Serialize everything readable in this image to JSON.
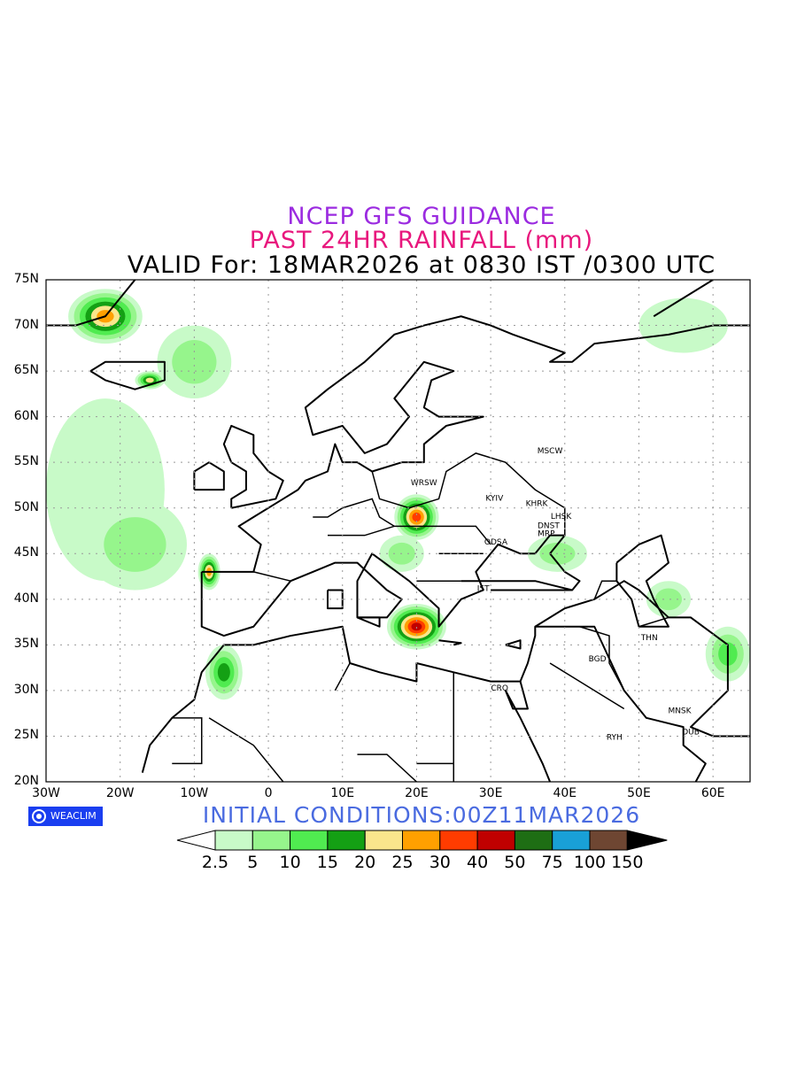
{
  "titles": {
    "line1": "NCEP GFS GUIDANCE",
    "line2": "PAST 24HR RAINFALL (mm)",
    "line3": "VALID For: 18MAR2026 at 0830 IST /0300 UTC"
  },
  "axes": {
    "lat_labels": [
      "75N",
      "70N",
      "65N",
      "60N",
      "55N",
      "50N",
      "45N",
      "40N",
      "35N",
      "30N",
      "25N",
      "20N"
    ],
    "lon_labels": [
      "30W",
      "20W",
      "10W",
      "0",
      "10E",
      "20E",
      "30E",
      "40E",
      "50E",
      "60E"
    ]
  },
  "cities": [
    {
      "label": "MSCW",
      "lon": 38.0,
      "lat": 56.0
    },
    {
      "label": "WRSW",
      "lon": 21.0,
      "lat": 52.5
    },
    {
      "label": "KYIV",
      "lon": 30.5,
      "lat": 50.8
    },
    {
      "label": "KHRK",
      "lon": 36.2,
      "lat": 50.2
    },
    {
      "label": "LHSK",
      "lon": 39.5,
      "lat": 48.8
    },
    {
      "label": "DNST",
      "lon": 37.8,
      "lat": 47.8
    },
    {
      "label": "MRP",
      "lon": 37.5,
      "lat": 46.9
    },
    {
      "label": "ODSA",
      "lon": 30.7,
      "lat": 46.0
    },
    {
      "label": "IST",
      "lon": 29.0,
      "lat": 40.9
    },
    {
      "label": "THN",
      "lon": 51.4,
      "lat": 35.5
    },
    {
      "label": "BGD",
      "lon": 44.4,
      "lat": 33.2
    },
    {
      "label": "CRO",
      "lon": 31.2,
      "lat": 30.0
    },
    {
      "label": "MNSK",
      "lon": 55.5,
      "lat": 27.5
    },
    {
      "label": "RYH",
      "lon": 46.7,
      "lat": 24.6
    },
    {
      "label": "DUB",
      "lon": 57.0,
      "lat": 25.2
    }
  ],
  "logo": {
    "text": "WEACLIM",
    "icon": "weaclim-logo-icon"
  },
  "initial_conditions": "INITIAL  CONDITIONS:00Z11MAR2026",
  "colorbar": {
    "labels": [
      "2.5",
      "5",
      "10",
      "15",
      "20",
      "25",
      "30",
      "40",
      "50",
      "75",
      "100",
      "150"
    ],
    "colors": [
      "#ffffff",
      "#c8fac8",
      "#96f58c",
      "#50eb50",
      "#14a014",
      "#fae68c",
      "#ffa000",
      "#ff3c00",
      "#c00000",
      "#1e6e14",
      "#19a0d7",
      "#6e4632",
      "#000000"
    ]
  },
  "rain_regions": [
    {
      "name": "north-atlantic-band",
      "lon": -22,
      "lat": 52,
      "rlon": 8,
      "rlat": 10,
      "level": 1
    },
    {
      "name": "north-atlantic-band-2",
      "lon": -18,
      "lat": 46,
      "rlon": 7,
      "rlat": 5,
      "level": 2
    },
    {
      "name": "norwegian-sea",
      "lon": -10,
      "lat": 66,
      "rlon": 5,
      "rlat": 4,
      "level": 2
    },
    {
      "name": "greenland-coast",
      "lon": -22,
      "lat": 71,
      "rlon": 5,
      "rlat": 3,
      "level": 6
    },
    {
      "name": "iceland-south",
      "lon": -16,
      "lat": 64,
      "rlon": 2,
      "rlat": 1,
      "level": 5
    },
    {
      "name": "iberia-northwest",
      "lon": -8,
      "lat": 43,
      "rlon": 1.5,
      "rlat": 2,
      "level": 6
    },
    {
      "name": "morocco-atlas",
      "lon": -6,
      "lat": 32,
      "rlon": 2.5,
      "rlat": 3,
      "level": 4
    },
    {
      "name": "carpathians",
      "lon": 20,
      "lat": 49,
      "rlon": 3,
      "rlat": 2.5,
      "level": 7
    },
    {
      "name": "balkans",
      "lon": 18,
      "lat": 45,
      "rlon": 3,
      "rlat": 2,
      "level": 2
    },
    {
      "name": "ionian-sea",
      "lon": 20,
      "lat": 37,
      "rlon": 4,
      "rlat": 2.5,
      "level": 8
    },
    {
      "name": "black-sea-east",
      "lon": 39,
      "lat": 45,
      "rlon": 4,
      "rlat": 2,
      "level": 2
    },
    {
      "name": "caspian-south",
      "lon": 54,
      "lat": 40,
      "rlon": 3,
      "rlat": 2,
      "level": 2
    },
    {
      "name": "ural-north",
      "lon": 56,
      "lat": 70,
      "rlon": 6,
      "rlat": 3,
      "level": 1
    },
    {
      "name": "iran-east",
      "lon": 62,
      "lat": 34,
      "rlon": 3,
      "rlat": 3,
      "level": 3
    }
  ]
}
